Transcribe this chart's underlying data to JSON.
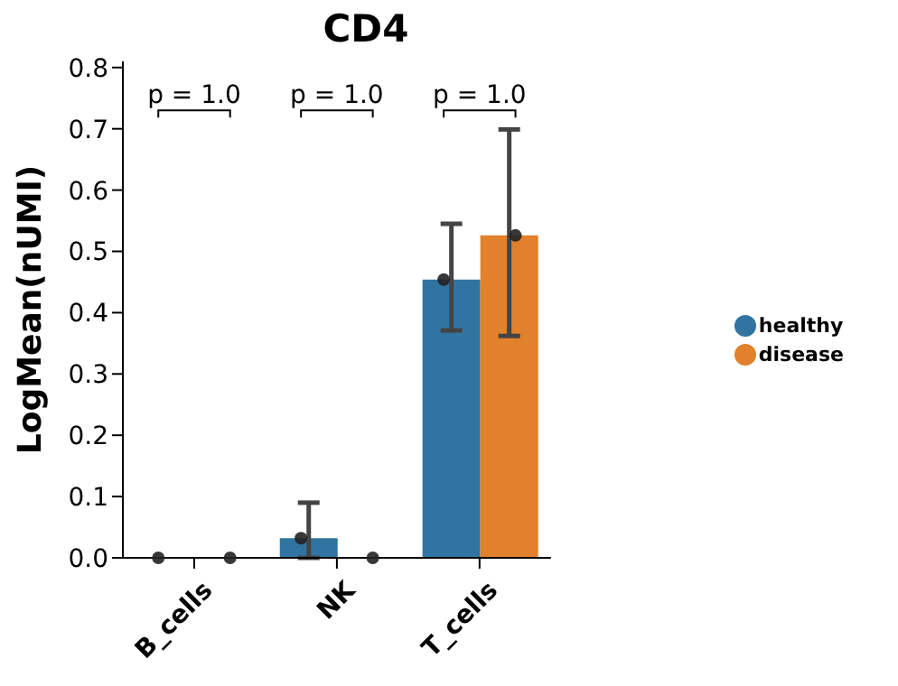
{
  "chart_data": {
    "type": "bar",
    "title": "CD4",
    "ylabel": "LogMean(nUMI)",
    "categories": [
      "B_cells",
      "NK",
      "T_cells"
    ],
    "series": [
      {
        "name": "healthy",
        "color": "#3274a1",
        "values": [
          0,
          0.032,
          0.454
        ],
        "errors": [
          null,
          [
            0,
            0.09
          ],
          [
            0.371,
            0.545
          ]
        ]
      },
      {
        "name": "disease",
        "color": "#e1812c",
        "values": [
          0,
          0,
          0.526
        ],
        "errors": [
          null,
          null,
          [
            0.362,
            0.699
          ]
        ]
      },
      {
        "type": "scatter",
        "color": "#222222",
        "x": [
          "B_cells",
          "NK",
          "T_cells"
        ],
        "values": [
          0,
          0.032,
          0.454
        ]
      },
      {
        "type": "scatter",
        "color": "#222222",
        "x": [
          "B_cells",
          "NK",
          "T_cells"
        ],
        "values": [
          0,
          0,
          0.526
        ]
      }
    ],
    "ylim": [
      0,
      0.81
    ],
    "yticks": [
      {
        "value": 0,
        "label": "0.0"
      },
      {
        "value": 0.1,
        "label": "0.1"
      },
      {
        "value": 0.2,
        "label": "0.2"
      },
      {
        "value": 0.3,
        "label": "0.3"
      },
      {
        "value": 0.4,
        "label": "0.4"
      },
      {
        "value": 0.5,
        "label": "0.5"
      },
      {
        "value": 0.6,
        "label": "0.6"
      },
      {
        "value": 0.7,
        "label": "0.7"
      },
      {
        "value": 0.8,
        "label": "0.8"
      }
    ],
    "annotations": [
      "p = 1.0",
      "p = 1.0",
      "p = 1.0"
    ],
    "grid": false,
    "legend": "right",
    "marker": "circle"
  }
}
